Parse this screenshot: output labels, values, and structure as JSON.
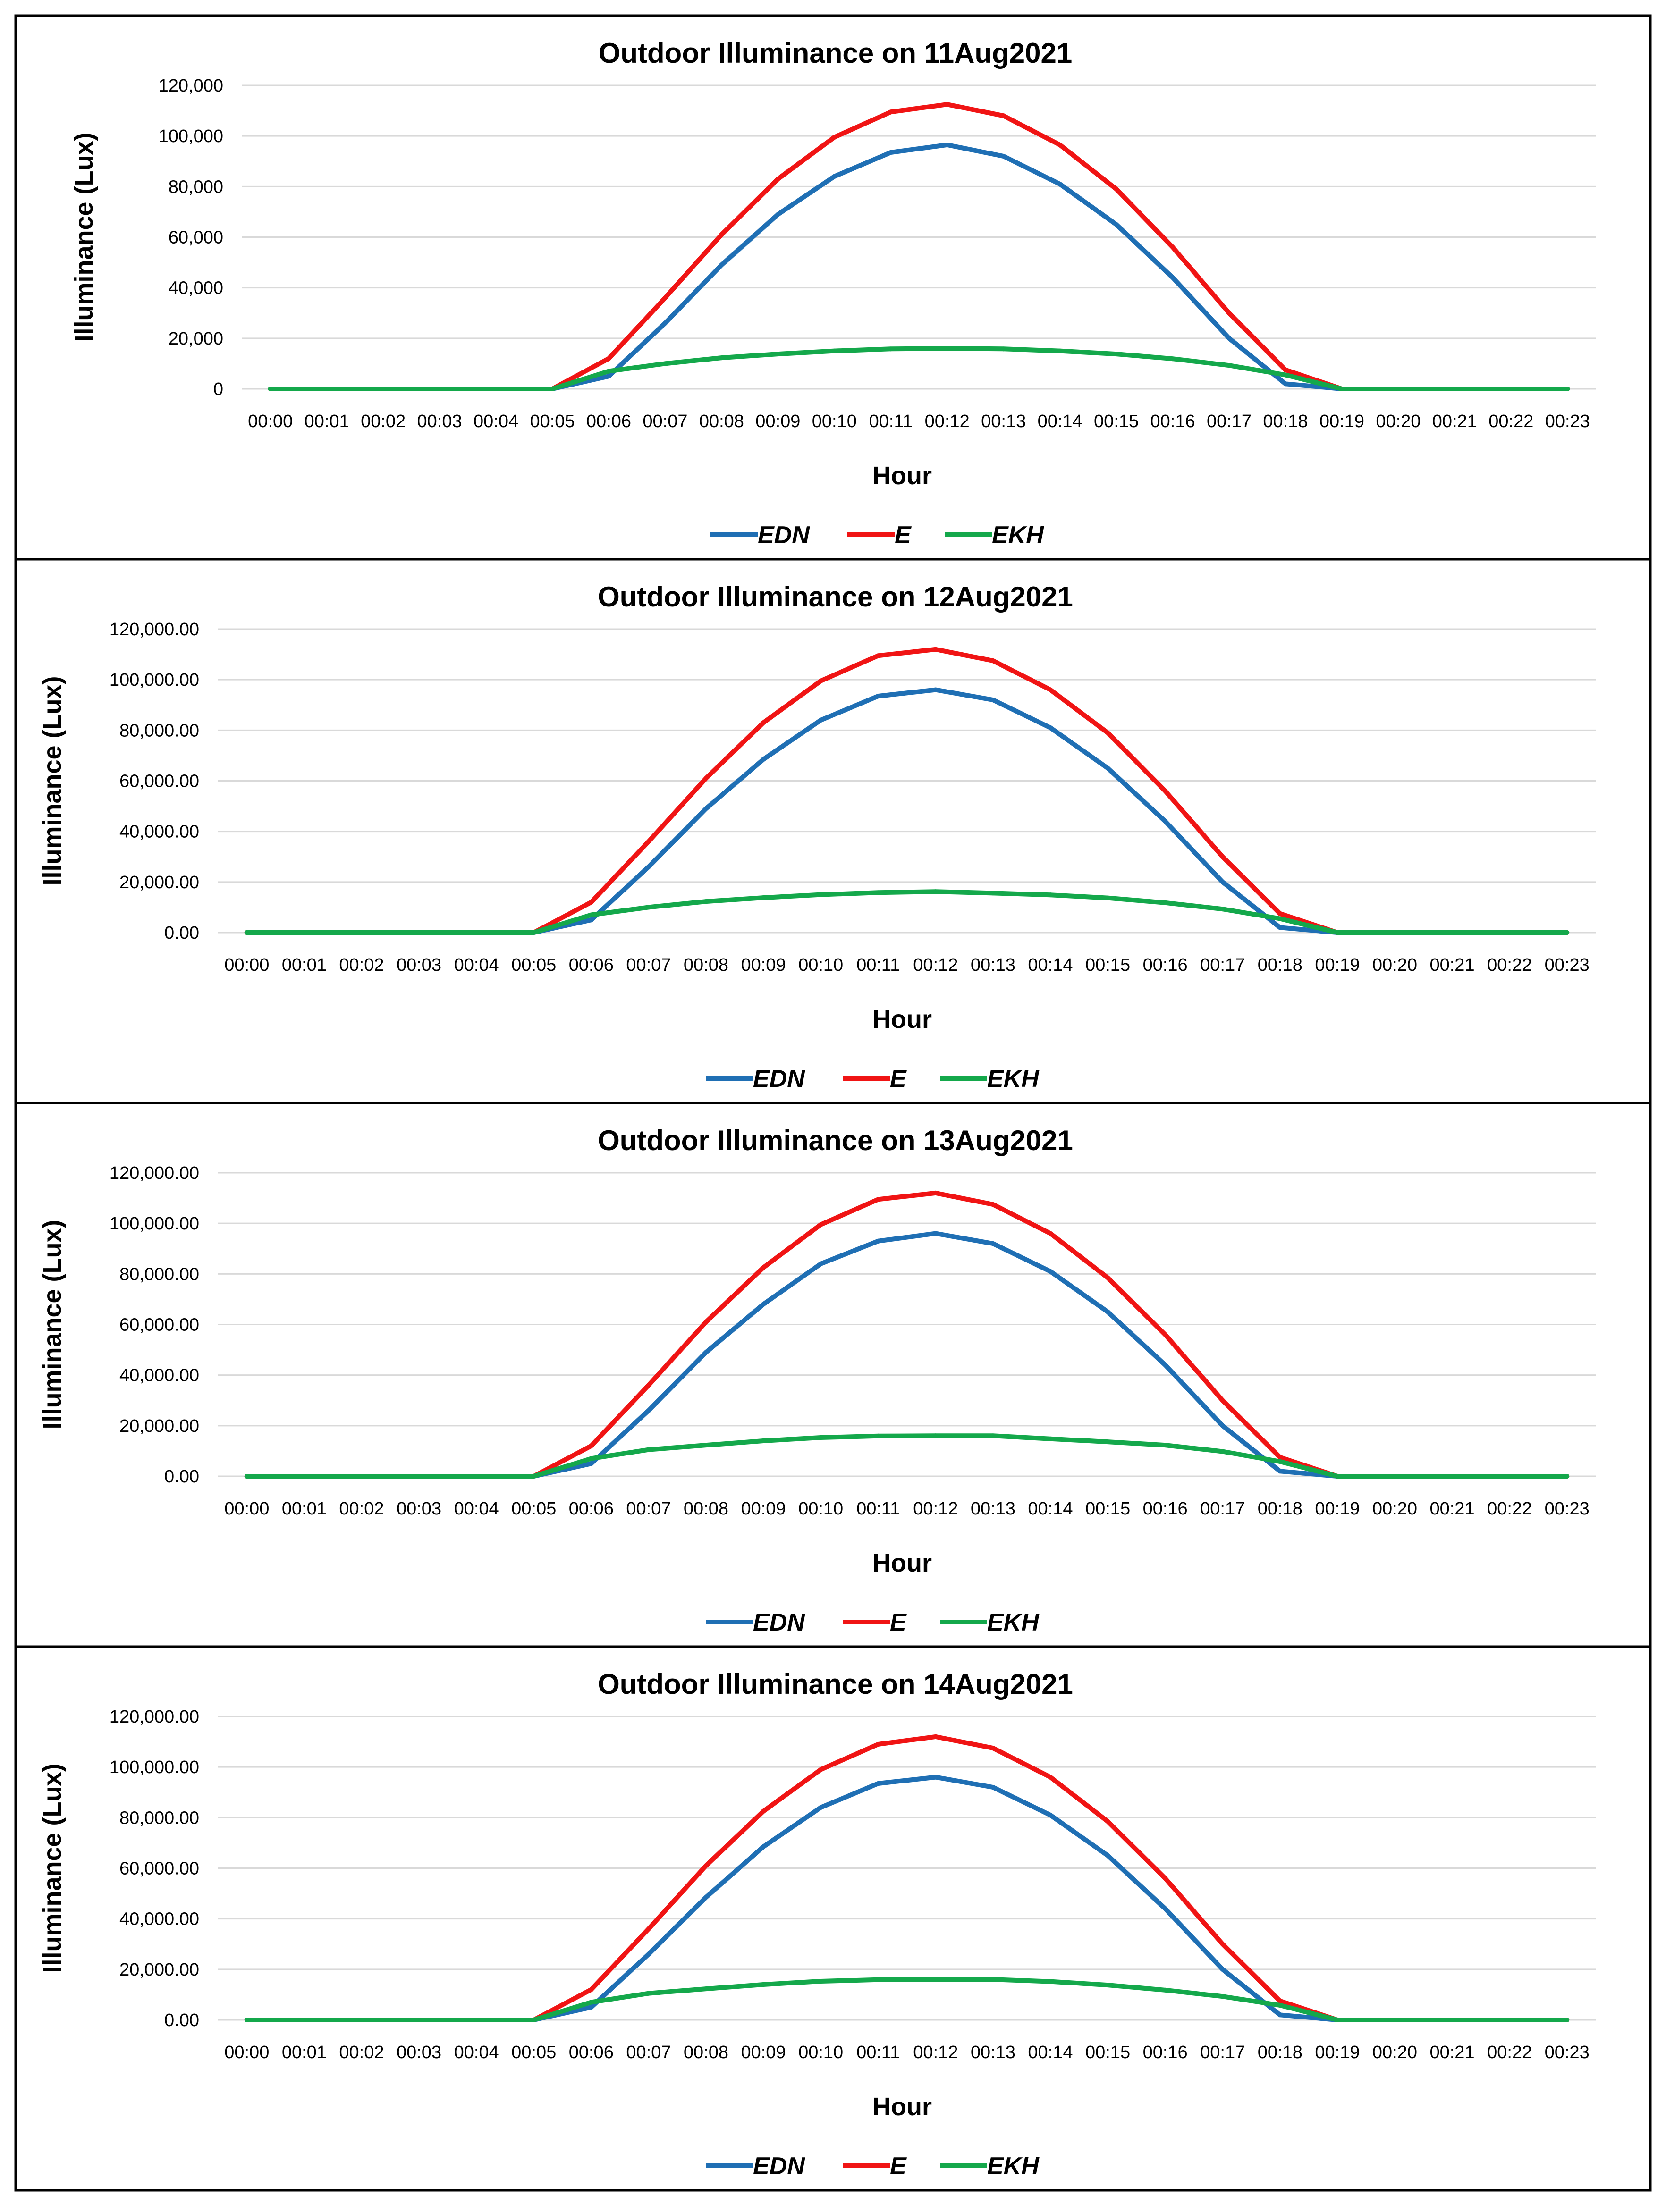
{
  "chart_data": [
    {
      "type": "line",
      "title": "Outdoor Illuminance on 11Aug2021",
      "xlabel": "Hour",
      "ylabel": "Illuminance (Lux)",
      "ylim": [
        0,
        120000
      ],
      "yticks": [
        "0",
        "20,000",
        "40,000",
        "60,000",
        "80,000",
        "100,000",
        "120,000"
      ],
      "grid": true,
      "legend": "bottom-center",
      "categories": [
        "00:00",
        "00:01",
        "00:02",
        "00:03",
        "00:04",
        "00:05",
        "00:06",
        "00:07",
        "00:08",
        "00:09",
        "00:10",
        "00:11",
        "00:12",
        "00:13",
        "00:14",
        "00:15",
        "00:16",
        "00:17",
        "00:18",
        "00:19",
        "00:20",
        "00:21",
        "00:22",
        "00:23"
      ],
      "series": [
        {
          "name": "EDN",
          "color": "#1F6FB4",
          "values": [
            0,
            0,
            0,
            0,
            0,
            0,
            5000,
            26000,
            49000,
            69000,
            84000,
            93500,
            96500,
            92000,
            81000,
            65000,
            44000,
            20000,
            2000,
            0,
            0,
            0,
            0,
            0
          ]
        },
        {
          "name": "E",
          "color": "#F01414",
          "values": [
            0,
            0,
            0,
            0,
            0,
            0,
            12000,
            36000,
            61000,
            83000,
            99500,
            109500,
            112500,
            108000,
            96500,
            79000,
            56000,
            30000,
            7500,
            0,
            0,
            0,
            0,
            0
          ]
        },
        {
          "name": "EKH",
          "color": "#14A84B",
          "values": [
            0,
            0,
            0,
            0,
            0,
            0,
            7000,
            10000,
            12300,
            13800,
            15000,
            15800,
            16000,
            15800,
            15000,
            13800,
            11900,
            9300,
            5500,
            0,
            0,
            0,
            0,
            0
          ]
        }
      ]
    },
    {
      "type": "line",
      "title": "Outdoor Illuminance on 12Aug2021",
      "xlabel": "Hour",
      "ylabel": "Illuminance (Lux)",
      "ylim": [
        0,
        120000
      ],
      "yticks": [
        "0.00",
        "20,000.00",
        "40,000.00",
        "60,000.00",
        "80,000.00",
        "100,000.00",
        "120,000.00"
      ],
      "grid": true,
      "legend": "bottom-center",
      "categories": [
        "00:00",
        "00:01",
        "00:02",
        "00:03",
        "00:04",
        "00:05",
        "00:06",
        "00:07",
        "00:08",
        "00:09",
        "00:10",
        "00:11",
        "00:12",
        "00:13",
        "00:14",
        "00:15",
        "00:16",
        "00:17",
        "00:18",
        "00:19",
        "00:20",
        "00:21",
        "00:22",
        "00:23"
      ],
      "series": [
        {
          "name": "EDN",
          "color": "#1F6FB4",
          "values": [
            0,
            0,
            0,
            0,
            0,
            0,
            5000,
            26000,
            49000,
            68500,
            84000,
            93500,
            96000,
            92000,
            81000,
            65000,
            44000,
            20000,
            2000,
            0,
            0,
            0,
            0,
            0
          ]
        },
        {
          "name": "E",
          "color": "#F01414",
          "values": [
            0,
            0,
            0,
            0,
            0,
            0,
            12000,
            36000,
            61000,
            83000,
            99500,
            109500,
            112000,
            107500,
            96000,
            79000,
            56000,
            30000,
            7500,
            0,
            0,
            0,
            0,
            0
          ]
        },
        {
          "name": "EKH",
          "color": "#14A84B",
          "values": [
            0,
            0,
            0,
            0,
            0,
            0,
            7000,
            10000,
            12300,
            13800,
            15000,
            15800,
            16200,
            15600,
            14900,
            13700,
            11800,
            9300,
            5500,
            0,
            0,
            0,
            0,
            0
          ]
        }
      ]
    },
    {
      "type": "line",
      "title": "Outdoor Illuminance on 13Aug2021",
      "xlabel": "Hour",
      "ylabel": "Illuminance (Lux)",
      "ylim": [
        0,
        120000
      ],
      "yticks": [
        "0.00",
        "20,000.00",
        "40,000.00",
        "60,000.00",
        "80,000.00",
        "100,000.00",
        "120,000.00"
      ],
      "grid": true,
      "legend": "bottom-center",
      "categories": [
        "00:00",
        "00:01",
        "00:02",
        "00:03",
        "00:04",
        "00:05",
        "00:06",
        "00:07",
        "00:08",
        "00:09",
        "00:10",
        "00:11",
        "00:12",
        "00:13",
        "00:14",
        "00:15",
        "00:16",
        "00:17",
        "00:18",
        "00:19",
        "00:20",
        "00:21",
        "00:22",
        "00:23"
      ],
      "series": [
        {
          "name": "EDN",
          "color": "#1F6FB4",
          "values": [
            0,
            0,
            0,
            0,
            0,
            0,
            5000,
            26000,
            49000,
            68000,
            84000,
            93000,
            96000,
            92000,
            81000,
            65000,
            44000,
            20000,
            2000,
            0,
            0,
            0,
            0,
            0
          ]
        },
        {
          "name": "E",
          "color": "#F01414",
          "values": [
            0,
            0,
            0,
            0,
            0,
            0,
            12000,
            36000,
            61000,
            82500,
            99500,
            109500,
            112000,
            107500,
            96000,
            78500,
            56000,
            30000,
            7500,
            0,
            0,
            0,
            0,
            0
          ]
        },
        {
          "name": "EKH",
          "color": "#14A84B",
          "values": [
            0,
            0,
            0,
            0,
            0,
            0,
            7000,
            10500,
            12300,
            14000,
            15300,
            15900,
            16000,
            16000,
            14800,
            13600,
            12300,
            9800,
            5800,
            0,
            0,
            0,
            0,
            0
          ]
        }
      ]
    },
    {
      "type": "line",
      "title": "Outdoor Illuminance on 14Aug2021",
      "xlabel": "Hour",
      "ylabel": "Illuminance (Lux)",
      "ylim": [
        0,
        120000
      ],
      "yticks": [
        "0.00",
        "20,000.00",
        "40,000.00",
        "60,000.00",
        "80,000.00",
        "100,000.00",
        "120,000.00"
      ],
      "grid": true,
      "legend": "bottom-center",
      "categories": [
        "00:00",
        "00:01",
        "00:02",
        "00:03",
        "00:04",
        "00:05",
        "00:06",
        "00:07",
        "00:08",
        "00:09",
        "00:10",
        "00:11",
        "00:12",
        "00:13",
        "00:14",
        "00:15",
        "00:16",
        "00:17",
        "00:18",
        "00:19",
        "00:20",
        "00:21",
        "00:22",
        "00:23"
      ],
      "series": [
        {
          "name": "EDN",
          "color": "#1F6FB4",
          "values": [
            0,
            0,
            0,
            0,
            0,
            0,
            5000,
            26000,
            48500,
            68500,
            84000,
            93500,
            96000,
            92000,
            81000,
            65000,
            44000,
            20000,
            2000,
            0,
            0,
            0,
            0,
            0
          ]
        },
        {
          "name": "E",
          "color": "#F01414",
          "values": [
            0,
            0,
            0,
            0,
            0,
            0,
            12000,
            36000,
            61000,
            82500,
            99000,
            109000,
            112000,
            107500,
            96000,
            78500,
            56000,
            30000,
            7500,
            0,
            0,
            0,
            0,
            0
          ]
        },
        {
          "name": "EKH",
          "color": "#14A84B",
          "values": [
            0,
            0,
            0,
            0,
            0,
            0,
            7000,
            10500,
            12300,
            14000,
            15300,
            15900,
            16000,
            16000,
            15200,
            13800,
            11800,
            9300,
            5800,
            0,
            0,
            0,
            0,
            0
          ]
        }
      ]
    }
  ]
}
